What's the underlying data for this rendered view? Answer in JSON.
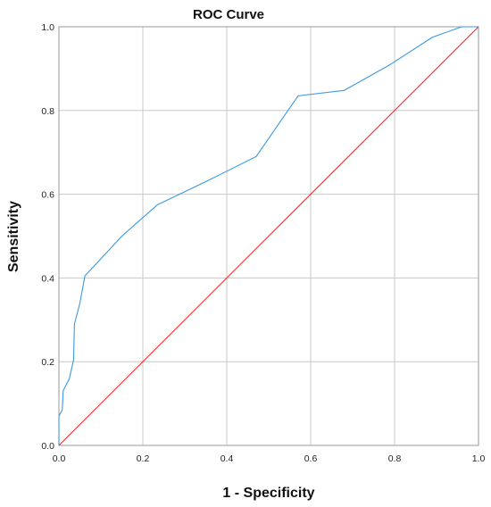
{
  "chart_data": {
    "type": "line",
    "title": "ROC Curve",
    "xlabel": "1 - Specificity",
    "ylabel": "Sensitivity",
    "xlim": [
      0,
      1
    ],
    "ylim": [
      0,
      1
    ],
    "grid": true,
    "x_ticks": [
      "0.0",
      "0.2",
      "0.4",
      "0.6",
      "0.8",
      "1.0"
    ],
    "y_ticks": [
      "0.0",
      "0.2",
      "0.4",
      "0.6",
      "0.8",
      "1.0"
    ],
    "series": [
      {
        "color": "#3a9ae0",
        "points": [
          [
            0.0,
            0.0
          ],
          [
            0.0,
            0.07
          ],
          [
            0.008,
            0.085
          ],
          [
            0.01,
            0.13
          ],
          [
            0.025,
            0.16
          ],
          [
            0.035,
            0.205
          ],
          [
            0.037,
            0.29
          ],
          [
            0.05,
            0.34
          ],
          [
            0.062,
            0.405
          ],
          [
            0.09,
            0.435
          ],
          [
            0.15,
            0.5
          ],
          [
            0.235,
            0.575
          ],
          [
            0.35,
            0.63
          ],
          [
            0.47,
            0.69
          ],
          [
            0.57,
            0.835
          ],
          [
            0.68,
            0.848
          ],
          [
            0.79,
            0.91
          ],
          [
            0.89,
            0.975
          ],
          [
            0.96,
            1.0
          ],
          [
            1.0,
            1.0
          ]
        ]
      },
      {
        "color": "#ff2a2a",
        "points": [
          [
            0,
            0
          ],
          [
            1,
            1
          ]
        ]
      }
    ],
    "colors": {
      "grid": "#c8c8c8",
      "frame": "#9a9a9a"
    }
  }
}
